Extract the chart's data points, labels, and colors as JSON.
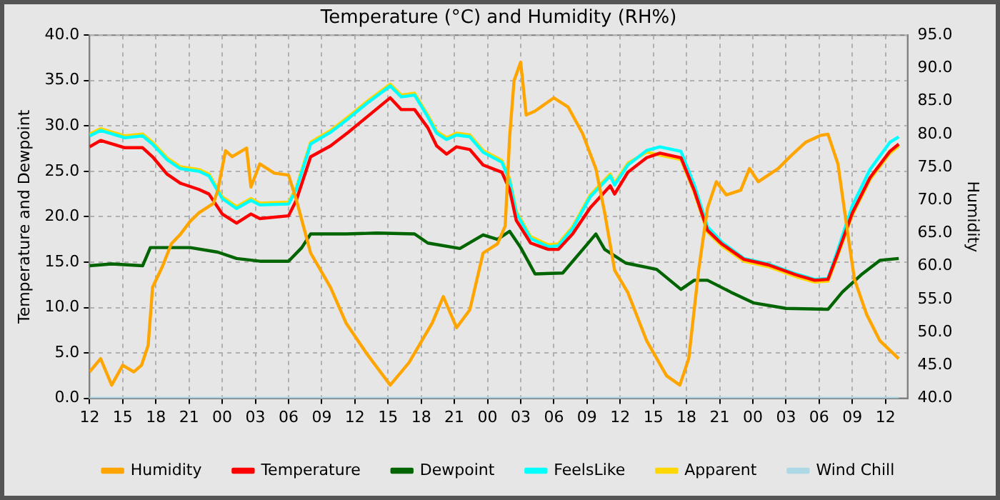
{
  "chart_data": {
    "type": "line",
    "title": "Temperature (°C) and Humidity (RH%)",
    "ylabel": "Temperature and Dewpoint",
    "y2label": "Humidity",
    "xlim": [
      12,
      86
    ],
    "xticks": [
      12,
      15,
      18,
      21,
      {
        "value": 24,
        "label": "00"
      },
      {
        "value": 27,
        "label": "03"
      },
      {
        "value": 30,
        "label": "06"
      },
      {
        "value": 33,
        "label": "09"
      },
      {
        "value": 36,
        "label": "12"
      },
      {
        "value": 39,
        "label": "15"
      },
      {
        "value": 42,
        "label": "18"
      },
      {
        "value": 45,
        "label": "21"
      },
      {
        "value": 48,
        "label": "00"
      },
      {
        "value": 51,
        "label": "03"
      },
      {
        "value": 54,
        "label": "06"
      },
      {
        "value": 57,
        "label": "09"
      },
      {
        "value": 60,
        "label": "12"
      },
      {
        "value": 63,
        "label": "15"
      },
      {
        "value": 66,
        "label": "18"
      },
      {
        "value": 69,
        "label": "21"
      },
      {
        "value": 72,
        "label": "00"
      },
      {
        "value": 75,
        "label": "03"
      },
      {
        "value": 78,
        "label": "06"
      },
      {
        "value": 81,
        "label": "09"
      },
      {
        "value": 84,
        "label": "12"
      }
    ],
    "ylim": [
      0,
      40
    ],
    "yticks": [
      {
        "value": 0,
        "label": "0.0"
      },
      {
        "value": 5,
        "label": "5.0"
      },
      {
        "value": 10,
        "label": "10.0"
      },
      {
        "value": 15,
        "label": "15.0"
      },
      {
        "value": 20,
        "label": "20.0"
      },
      {
        "value": 25,
        "label": "25.0"
      },
      {
        "value": 30,
        "label": "30.0"
      },
      {
        "value": 35,
        "label": "35.0"
      },
      {
        "value": 40,
        "label": "40.0"
      }
    ],
    "y2lim": [
      40,
      95
    ],
    "y2ticks": [
      {
        "value": 40,
        "label": "40.0"
      },
      {
        "value": 45,
        "label": "45.0"
      },
      {
        "value": 50,
        "label": "50.0"
      },
      {
        "value": 55,
        "label": "55.0"
      },
      {
        "value": 60,
        "label": "60.0"
      },
      {
        "value": 65,
        "label": "65.0"
      },
      {
        "value": 70,
        "label": "70.0"
      },
      {
        "value": 75,
        "label": "75.0"
      },
      {
        "value": 80,
        "label": "80.0"
      },
      {
        "value": 85,
        "label": "85.0"
      },
      {
        "value": 90,
        "label": "90.0"
      },
      {
        "value": 95,
        "label": "95.0"
      }
    ],
    "grid": true,
    "legend": "bottom",
    "marker": "none",
    "line_style": "solid",
    "series": [
      {
        "name": "Humidity",
        "color": "#ffa500",
        "axis": "y2",
        "x": [
          12,
          13,
          14,
          15,
          16,
          16.7,
          17.3,
          17.7,
          18.6,
          19.4,
          20.2,
          21.1,
          21.9,
          23.2,
          23.6,
          24.3,
          24.9,
          26.2,
          26.6,
          27.4,
          28.7,
          30,
          30.7,
          32,
          33.8,
          35.2,
          37.1,
          39.2,
          40.9,
          43,
          44,
          45.2,
          46.4,
          47.6,
          48.9,
          49.6,
          50,
          50.4,
          51,
          51.5,
          52.3,
          54,
          55.3,
          56.6,
          57.8,
          58.6,
          59.5,
          60.7,
          62.4,
          64.2,
          65.4,
          66.2,
          67.1,
          67.9,
          68.7,
          69.6,
          70.9,
          71.7,
          72.5,
          74.3,
          75.5,
          76.8,
          78.1,
          78.8,
          79.7,
          80.6,
          81.2,
          82.3,
          83.5,
          85.2
        ],
        "values": [
          44,
          46,
          42,
          45,
          44,
          45,
          48,
          56.8,
          60,
          63.4,
          64.8,
          66.8,
          68.1,
          69.5,
          71.5,
          77.5,
          76.6,
          77.9,
          72,
          75.5,
          74.1,
          73.8,
          70.1,
          62,
          56.8,
          51.4,
          46.7,
          42,
          45.4,
          51.4,
          55.4,
          50.7,
          53.4,
          62,
          63.4,
          66.1,
          79.5,
          88.1,
          90.9,
          82.9,
          83.5,
          85.5,
          84.1,
          80.1,
          74.8,
          68.1,
          59.4,
          56,
          48.7,
          43.4,
          42,
          46,
          59.4,
          68.8,
          72.8,
          70.8,
          71.5,
          74.8,
          72.8,
          74.8,
          76.8,
          78.8,
          79.8,
          80,
          75.5,
          64.8,
          58,
          52.7,
          48.7,
          46
        ]
      },
      {
        "name": "Temperature",
        "color": "#ff0000",
        "x": [
          12,
          13,
          15.2,
          16.8,
          17.7,
          19,
          20.2,
          21.9,
          22.8,
          24,
          25.3,
          26.6,
          27.4,
          30,
          30.7,
          32,
          33.8,
          35.4,
          37.1,
          39.2,
          40.2,
          41.4,
          42.6,
          43.4,
          44.3,
          45.2,
          46.4,
          47.6,
          49.3,
          50,
          50.6,
          51.9,
          53.5,
          54.4,
          55.7,
          57.3,
          59.1,
          59.5,
          60.7,
          62.4,
          63.6,
          65.5,
          66.7,
          67.9,
          69.2,
          71.2,
          73.4,
          75.9,
          77.6,
          78.8,
          79.7,
          81,
          82.6,
          84.4,
          85.2
        ],
        "values": [
          27.7,
          28.4,
          27.6,
          27.6,
          26.6,
          24.7,
          23.7,
          23.0,
          22.5,
          20.3,
          19.3,
          20.3,
          19.8,
          20.1,
          21.8,
          26.6,
          27.8,
          29.3,
          31.0,
          33.1,
          31.8,
          31.8,
          29.8,
          27.8,
          26.9,
          27.7,
          27.4,
          25.7,
          24.9,
          23.0,
          19.6,
          17.1,
          16.4,
          16.4,
          18.1,
          21.0,
          23.4,
          22.5,
          24.9,
          26.5,
          27.0,
          26.5,
          22.9,
          18.5,
          17.0,
          15.3,
          14.7,
          13.6,
          13.0,
          13.1,
          16.0,
          20.4,
          24.3,
          27.2,
          28.0
        ]
      },
      {
        "name": "Dewpoint",
        "color": "#006400",
        "x": [
          12,
          14,
          16.8,
          17.5,
          21.1,
          23.6,
          25.3,
          27.4,
          30,
          31.2,
          32,
          35.2,
          38,
          41.4,
          42.6,
          45.5,
          47.6,
          48.9,
          50,
          51,
          52.3,
          54.8,
          56.9,
          57.8,
          58.6,
          60.5,
          63.3,
          65.5,
          66.7,
          67.9,
          70,
          72.1,
          75,
          78.8,
          80.1,
          81.9,
          83.5,
          85.2
        ],
        "values": [
          14.6,
          14.8,
          14.6,
          16.6,
          16.6,
          16.1,
          15.4,
          15.1,
          15.1,
          16.6,
          18.1,
          18.1,
          18.2,
          18.1,
          17.1,
          16.5,
          18.0,
          17.5,
          18.4,
          16.6,
          13.7,
          13.8,
          16.8,
          18.1,
          16.4,
          14.9,
          14.2,
          12.0,
          13.0,
          13.0,
          11.7,
          10.5,
          9.9,
          9.8,
          11.7,
          13.7,
          15.2,
          15.4
        ]
      },
      {
        "name": "FeelsLike",
        "color": "#00ffff",
        "x": [
          12,
          13,
          15.2,
          16.8,
          17.7,
          19,
          20.2,
          21.9,
          22.8,
          24,
          25.3,
          26.6,
          27.4,
          30,
          30.7,
          32,
          33.8,
          35.4,
          37.1,
          39.2,
          40.2,
          41.4,
          42.6,
          43.4,
          44.3,
          45.2,
          46.4,
          47.6,
          49.3,
          50,
          50.6,
          51.9,
          53.5,
          54.4,
          55.7,
          57.3,
          59.1,
          59.5,
          60.7,
          62.4,
          63.6,
          65.5,
          66.7,
          67.9,
          69.2,
          71.2,
          73.4,
          75.9,
          77.6,
          78.8,
          79.7,
          81,
          82.6,
          84.4,
          85.2
        ],
        "values": [
          28.9,
          29.5,
          28.7,
          28.9,
          28.0,
          26.3,
          25.3,
          25.0,
          24.5,
          22.0,
          20.9,
          21.8,
          21.3,
          21.4,
          23.0,
          28.0,
          29.3,
          30.8,
          32.5,
          34.4,
          33.2,
          33.4,
          31.0,
          29.2,
          28.5,
          29.0,
          28.8,
          27.1,
          26.0,
          24.0,
          20.4,
          17.6,
          16.7,
          16.8,
          18.7,
          22.2,
          24.5,
          23.5,
          25.7,
          27.3,
          27.7,
          27.2,
          23.5,
          18.9,
          17.2,
          15.4,
          14.8,
          13.7,
          13.1,
          13.2,
          16.4,
          21.2,
          25.2,
          28.2,
          28.8
        ]
      },
      {
        "name": "Apparent",
        "color": "#ffd700",
        "x": [
          12,
          13,
          15.2,
          16.8,
          17.7,
          19,
          20.2,
          21.9,
          22.8,
          24,
          25.3,
          26.6,
          27.4,
          30,
          30.7,
          32,
          33.8,
          35.4,
          37.1,
          39.2,
          40.2,
          41.4,
          42.6,
          43.4,
          44.3,
          45.2,
          46.4,
          47.6,
          49.3,
          50,
          50.6,
          51.9,
          53.5,
          54.4,
          55.7,
          57.3,
          59.1,
          59.5,
          60.7,
          62.4,
          63.6,
          65.5,
          66.7,
          67.9,
          69.2,
          71.2,
          73.4,
          75.9,
          77.6,
          78.8,
          79.7,
          81,
          82.6,
          84.4,
          85.2
        ],
        "values": [
          29.1,
          29.7,
          28.9,
          29.1,
          28.2,
          26.5,
          25.5,
          25.2,
          24.7,
          22.2,
          21.1,
          22.0,
          21.5,
          21.6,
          23.2,
          28.2,
          29.5,
          31.0,
          32.7,
          34.6,
          33.4,
          33.6,
          31.2,
          29.4,
          28.7,
          29.2,
          29.0,
          27.3,
          26.2,
          24.2,
          20.6,
          17.8,
          16.9,
          17.0,
          18.9,
          22.4,
          24.7,
          23.7,
          25.9,
          27.1,
          26.8,
          26.3,
          22.7,
          18.3,
          16.8,
          15.1,
          14.5,
          13.4,
          12.8,
          12.9,
          15.8,
          20.2,
          24.1,
          27.0,
          27.8
        ]
      },
      {
        "name": "Wind Chill",
        "color": "#add8e6",
        "x": [
          12,
          85.2
        ],
        "values": [
          0,
          0
        ]
      }
    ]
  }
}
